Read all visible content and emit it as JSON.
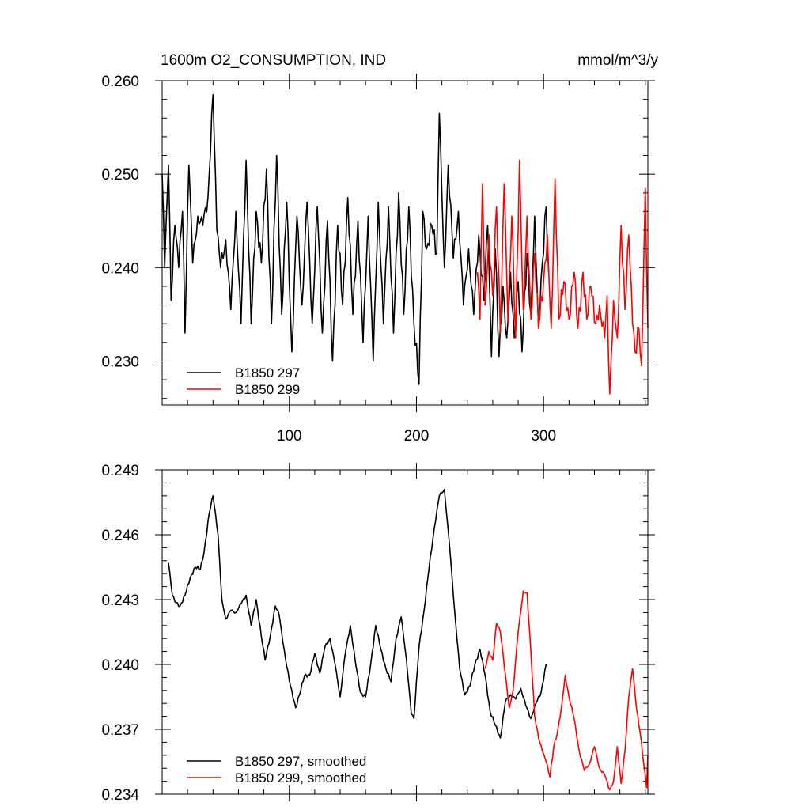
{
  "chart_data": [
    {
      "type": "line",
      "title": "1600m O2_CONSUMPTION, IND",
      "units": "mmol/m^3/y",
      "xlim": [
        0,
        382
      ],
      "ylim": [
        0.2253,
        0.26
      ],
      "xticks": [
        100,
        200,
        300
      ],
      "xtick_labels": [
        "100",
        "200",
        "300"
      ],
      "yticks": [
        0.23,
        0.24,
        0.25,
        0.26
      ],
      "ytick_labels": [
        "0.230",
        "0.240",
        "0.250",
        "0.260"
      ],
      "legend_location": "bottom-left",
      "series": [
        {
          "name": "B1850 297",
          "color": "#000000",
          "x_start": 0,
          "x_step": 1,
          "anchors": [
            [
              0,
              0.25
            ],
            [
              2,
              0.24
            ],
            [
              5,
              0.251
            ],
            [
              7,
              0.2365
            ],
            [
              10,
              0.2445
            ],
            [
              13,
              0.24
            ],
            [
              16,
              0.246
            ],
            [
              18,
              0.233
            ],
            [
              21,
              0.251
            ],
            [
              24,
              0.2405
            ],
            [
              28,
              0.2455
            ],
            [
              32,
              0.2445
            ],
            [
              36,
              0.2475
            ],
            [
              40,
              0.2585
            ],
            [
              43,
              0.244
            ],
            [
              46,
              0.24
            ],
            [
              50,
              0.243
            ],
            [
              54,
              0.2355
            ],
            [
              58,
              0.246
            ],
            [
              62,
              0.234
            ],
            [
              66,
              0.2515
            ],
            [
              70,
              0.234
            ],
            [
              74,
              0.246
            ],
            [
              78,
              0.2405
            ],
            [
              82,
              0.2505
            ],
            [
              86,
              0.234
            ],
            [
              90,
              0.252
            ],
            [
              94,
              0.235
            ],
            [
              98,
              0.247
            ],
            [
              102,
              0.231
            ],
            [
              106,
              0.2455
            ],
            [
              110,
              0.236
            ],
            [
              114,
              0.247
            ],
            [
              118,
              0.234
            ],
            [
              122,
              0.2465
            ],
            [
              126,
              0.233
            ],
            [
              130,
              0.245
            ],
            [
              134,
              0.23
            ],
            [
              138,
              0.2445
            ],
            [
              142,
              0.236
            ],
            [
              146,
              0.2475
            ],
            [
              150,
              0.235
            ],
            [
              154,
              0.245
            ],
            [
              158,
              0.232
            ],
            [
              162,
              0.2455
            ],
            [
              166,
              0.23
            ],
            [
              170,
              0.247
            ],
            [
              174,
              0.234
            ],
            [
              178,
              0.2465
            ],
            [
              182,
              0.233
            ],
            [
              186,
              0.248
            ],
            [
              190,
              0.235
            ],
            [
              194,
              0.2465
            ],
            [
              198,
              0.234
            ],
            [
              202,
              0.2275
            ],
            [
              205,
              0.246
            ],
            [
              208,
              0.242
            ],
            [
              212,
              0.2445
            ],
            [
              216,
              0.2415
            ],
            [
              218,
              0.2565
            ],
            [
              222,
              0.24
            ],
            [
              225,
              0.251
            ],
            [
              229,
              0.241
            ],
            [
              233,
              0.246
            ],
            [
              237,
              0.236
            ],
            [
              241,
              0.242
            ],
            [
              245,
              0.235
            ],
            [
              249,
              0.2435
            ],
            [
              253,
              0.2365
            ],
            [
              256,
              0.2445
            ],
            [
              259,
              0.2305
            ],
            [
              262,
              0.242
            ],
            [
              265,
              0.2305
            ],
            [
              268,
              0.238
            ],
            [
              271,
              0.2325
            ],
            [
              274,
              0.2395
            ],
            [
              277,
              0.2325
            ],
            [
              280,
              0.2385
            ],
            [
              283,
              0.231
            ],
            [
              287,
              0.2415
            ],
            [
              290,
              0.235
            ],
            [
              293,
              0.2455
            ],
            [
              296,
              0.2335
            ],
            [
              299,
              0.2405
            ],
            [
              302,
              0.2465
            ],
            [
              304,
              0.2395
            ]
          ]
        },
        {
          "name": "B1850 299",
          "color": "#ff0000",
          "x_start": 248,
          "x_step": 1,
          "anchors": [
            [
              248,
              0.2395
            ],
            [
              250,
              0.2345
            ],
            [
              252,
              0.249
            ],
            [
              254,
              0.236
            ],
            [
              257,
              0.2435
            ],
            [
              260,
              0.237
            ],
            [
              263,
              0.2465
            ],
            [
              266,
              0.233
            ],
            [
              269,
              0.249
            ],
            [
              272,
              0.234
            ],
            [
              275,
              0.2455
            ],
            [
              278,
              0.2325
            ],
            [
              281,
              0.2515
            ],
            [
              284,
              0.2355
            ],
            [
              287,
              0.2455
            ],
            [
              290,
              0.2345
            ],
            [
              293,
              0.2415
            ],
            [
              296,
              0.2335
            ],
            [
              300,
              0.2385
            ],
            [
              303,
              0.2435
            ],
            [
              306,
              0.2335
            ],
            [
              309,
              0.2495
            ],
            [
              312,
              0.2345
            ],
            [
              316,
              0.2385
            ],
            [
              320,
              0.2345
            ],
            [
              324,
              0.2395
            ],
            [
              327,
              0.2335
            ],
            [
              331,
              0.2395
            ],
            [
              334,
              0.2345
            ],
            [
              337,
              0.238
            ],
            [
              341,
              0.234
            ],
            [
              344,
              0.236
            ],
            [
              348,
              0.2325
            ],
            [
              350,
              0.237
            ],
            [
              352,
              0.2265
            ],
            [
              355,
              0.2365
            ],
            [
              358,
              0.2325
            ],
            [
              361,
              0.2445
            ],
            [
              364,
              0.2355
            ],
            [
              367,
              0.2435
            ],
            [
              370,
              0.234
            ],
            [
              372,
              0.231
            ],
            [
              375,
              0.2335
            ],
            [
              377,
              0.2295
            ],
            [
              380,
              0.2485
            ],
            [
              382,
              0.2335
            ]
          ]
        }
      ]
    },
    {
      "type": "line",
      "title": "",
      "xlim": [
        0,
        382
      ],
      "ylim": [
        0.234,
        0.249
      ],
      "xticks": [
        100,
        200,
        300
      ],
      "yticks": [
        0.234,
        0.237,
        0.24,
        0.243,
        0.246,
        0.249
      ],
      "ytick_labels": [
        "0.234",
        "0.237",
        "0.240",
        "0.243",
        "0.246",
        "0.249"
      ],
      "legend_location": "bottom-left",
      "series": [
        {
          "name": "B1850 297, smoothed",
          "color": "#000000",
          "x_start": 5,
          "x_step": 1,
          "anchors": [
            [
              5,
              0.2447
            ],
            [
              8,
              0.2432
            ],
            [
              10,
              0.2429
            ],
            [
              14,
              0.2427
            ],
            [
              18,
              0.2432
            ],
            [
              22,
              0.244
            ],
            [
              26,
              0.2445
            ],
            [
              30,
              0.2444
            ],
            [
              33,
              0.2452
            ],
            [
              37,
              0.247
            ],
            [
              40,
              0.2478
            ],
            [
              44,
              0.246
            ],
            [
              47,
              0.243
            ],
            [
              50,
              0.2421
            ],
            [
              54,
              0.2425
            ],
            [
              58,
              0.2424
            ],
            [
              62,
              0.2428
            ],
            [
              66,
              0.2432
            ],
            [
              70,
              0.2418
            ],
            [
              74,
              0.243
            ],
            [
              78,
              0.2413
            ],
            [
              81,
              0.2402
            ],
            [
              85,
              0.2413
            ],
            [
              89,
              0.2427
            ],
            [
              92,
              0.2423
            ],
            [
              95,
              0.241
            ],
            [
              98,
              0.2399
            ],
            [
              101,
              0.239
            ],
            [
              105,
              0.238
            ],
            [
              108,
              0.2386
            ],
            [
              112,
              0.2395
            ],
            [
              116,
              0.2395
            ],
            [
              120,
              0.2405
            ],
            [
              124,
              0.2396
            ],
            [
              128,
              0.2408
            ],
            [
              132,
              0.2412
            ],
            [
              136,
              0.24
            ],
            [
              140,
              0.2385
            ],
            [
              144,
              0.2405
            ],
            [
              148,
              0.2418
            ],
            [
              152,
              0.2401
            ],
            [
              156,
              0.2387
            ],
            [
              160,
              0.2385
            ],
            [
              164,
              0.24
            ],
            [
              168,
              0.2418
            ],
            [
              172,
              0.2407
            ],
            [
              176,
              0.2398
            ],
            [
              180,
              0.2392
            ],
            [
              184,
              0.2412
            ],
            [
              188,
              0.2422
            ],
            [
              192,
              0.2403
            ],
            [
              196,
              0.2377
            ],
            [
              198,
              0.2375
            ],
            [
              202,
              0.2408
            ],
            [
              206,
              0.2425
            ],
            [
              210,
              0.2445
            ],
            [
              214,
              0.2463
            ],
            [
              218,
              0.2478
            ],
            [
              222,
              0.2481
            ],
            [
              226,
              0.2455
            ],
            [
              230,
              0.2425
            ],
            [
              234,
              0.2398
            ],
            [
              238,
              0.2386
            ],
            [
              242,
              0.239
            ],
            [
              246,
              0.24
            ],
            [
              250,
              0.2407
            ],
            [
              254,
              0.2395
            ],
            [
              258,
              0.2378
            ],
            [
              262,
              0.2372
            ],
            [
              266,
              0.2366
            ],
            [
              270,
              0.2383
            ],
            [
              274,
              0.2386
            ],
            [
              278,
              0.2384
            ],
            [
              282,
              0.2389
            ],
            [
              286,
              0.2381
            ],
            [
              290,
              0.2375
            ],
            [
              294,
              0.2382
            ],
            [
              298,
              0.2387
            ],
            [
              302,
              0.24
            ]
          ]
        },
        {
          "name": "B1850 299, smoothed",
          "color": "#ff0000",
          "x_start": 254,
          "x_step": 1,
          "anchors": [
            [
              254,
              0.2398
            ],
            [
              257,
              0.2406
            ],
            [
              260,
              0.2402
            ],
            [
              263,
              0.2419
            ],
            [
              266,
              0.2415
            ],
            [
              270,
              0.2395
            ],
            [
              273,
              0.238
            ],
            [
              276,
              0.2388
            ],
            [
              280,
              0.2415
            ],
            [
              284,
              0.2434
            ],
            [
              287,
              0.2433
            ],
            [
              290,
              0.2406
            ],
            [
              293,
              0.2376
            ],
            [
              296,
              0.2366
            ],
            [
              299,
              0.236
            ],
            [
              302,
              0.2355
            ],
            [
              305,
              0.2348
            ],
            [
              308,
              0.2362
            ],
            [
              311,
              0.2369
            ],
            [
              314,
              0.238
            ],
            [
              317,
              0.2395
            ],
            [
              320,
              0.2385
            ],
            [
              324,
              0.2375
            ],
            [
              328,
              0.236
            ],
            [
              332,
              0.2351
            ],
            [
              336,
              0.2354
            ],
            [
              340,
              0.2362
            ],
            [
              344,
              0.2352
            ],
            [
              348,
              0.2349
            ],
            [
              352,
              0.2342
            ],
            [
              355,
              0.2346
            ],
            [
              358,
              0.2362
            ],
            [
              361,
              0.2345
            ],
            [
              364,
              0.236
            ],
            [
              367,
              0.2385
            ],
            [
              370,
              0.2398
            ],
            [
              373,
              0.238
            ],
            [
              376,
              0.2368
            ],
            [
              379,
              0.2353
            ],
            [
              381,
              0.2343
            ],
            [
              382,
              0.2358
            ]
          ]
        }
      ]
    }
  ]
}
